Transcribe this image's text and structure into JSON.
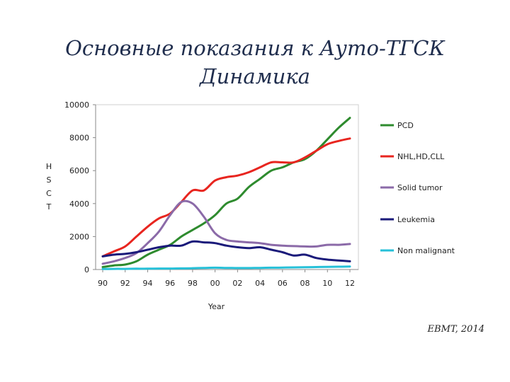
{
  "page": {
    "title_line1": "Основные показания к Ауто-ТГСК",
    "title_line2": "Динамика",
    "source": "EBMT, 2014"
  },
  "chart_data": {
    "type": "line",
    "title": "",
    "xlabel": "Year",
    "ylabel": "HSCT",
    "ylabel_chars": [
      "H",
      "S",
      "C",
      "T"
    ],
    "xlim": [
      1990,
      2012
    ],
    "ylim": [
      0,
      10000
    ],
    "yticks": [
      0,
      2000,
      4000,
      6000,
      8000,
      10000
    ],
    "ytick_labels": [
      "0",
      "2000",
      "4000",
      "6000",
      "8000",
      "10000"
    ],
    "xticks": [
      1990,
      1992,
      1994,
      1996,
      1998,
      2000,
      2002,
      2004,
      2006,
      2008,
      2010,
      2012
    ],
    "xtick_labels": [
      "90",
      "92",
      "94",
      "96",
      "98",
      "00",
      "02",
      "04",
      "06",
      "08",
      "10",
      "12"
    ],
    "grid": false,
    "legend_position": "right",
    "x": [
      1990,
      1991,
      1992,
      1993,
      1994,
      1995,
      1996,
      1997,
      1998,
      1999,
      2000,
      2001,
      2002,
      2003,
      2004,
      2005,
      2006,
      2007,
      2008,
      2009,
      2010,
      2011,
      2012
    ],
    "series": [
      {
        "name": "PCD",
        "color": "#2e8b2e",
        "values": [
          150,
          250,
          300,
          500,
          900,
          1200,
          1500,
          2000,
          2400,
          2800,
          3300,
          4000,
          4300,
          5000,
          5500,
          6000,
          6200,
          6500,
          6700,
          7200,
          7900,
          8600,
          9200
        ]
      },
      {
        "name": "NHL,HD,CLL",
        "color": "#e8251f",
        "values": [
          800,
          1100,
          1400,
          2000,
          2600,
          3100,
          3400,
          4100,
          4800,
          4800,
          5400,
          5600,
          5700,
          5900,
          6200,
          6500,
          6500,
          6500,
          6800,
          7200,
          7600,
          7800,
          7950
        ]
      },
      {
        "name": "Solid tumor",
        "color": "#8b6aa8",
        "values": [
          350,
          500,
          700,
          1000,
          1600,
          2300,
          3300,
          4100,
          4000,
          3200,
          2200,
          1800,
          1700,
          1650,
          1600,
          1500,
          1450,
          1420,
          1400,
          1400,
          1500,
          1500,
          1550
        ]
      },
      {
        "name": "Leukemia",
        "color": "#1a1a7a",
        "values": [
          800,
          900,
          950,
          1050,
          1200,
          1350,
          1450,
          1450,
          1700,
          1650,
          1600,
          1450,
          1350,
          1300,
          1350,
          1200,
          1050,
          850,
          900,
          700,
          600,
          550,
          500
        ]
      },
      {
        "name": "Non malignant",
        "color": "#26c0d8",
        "values": [
          30,
          40,
          40,
          50,
          50,
          60,
          60,
          70,
          80,
          100,
          110,
          100,
          90,
          90,
          100,
          110,
          120,
          130,
          140,
          150,
          160,
          170,
          180
        ]
      }
    ]
  }
}
